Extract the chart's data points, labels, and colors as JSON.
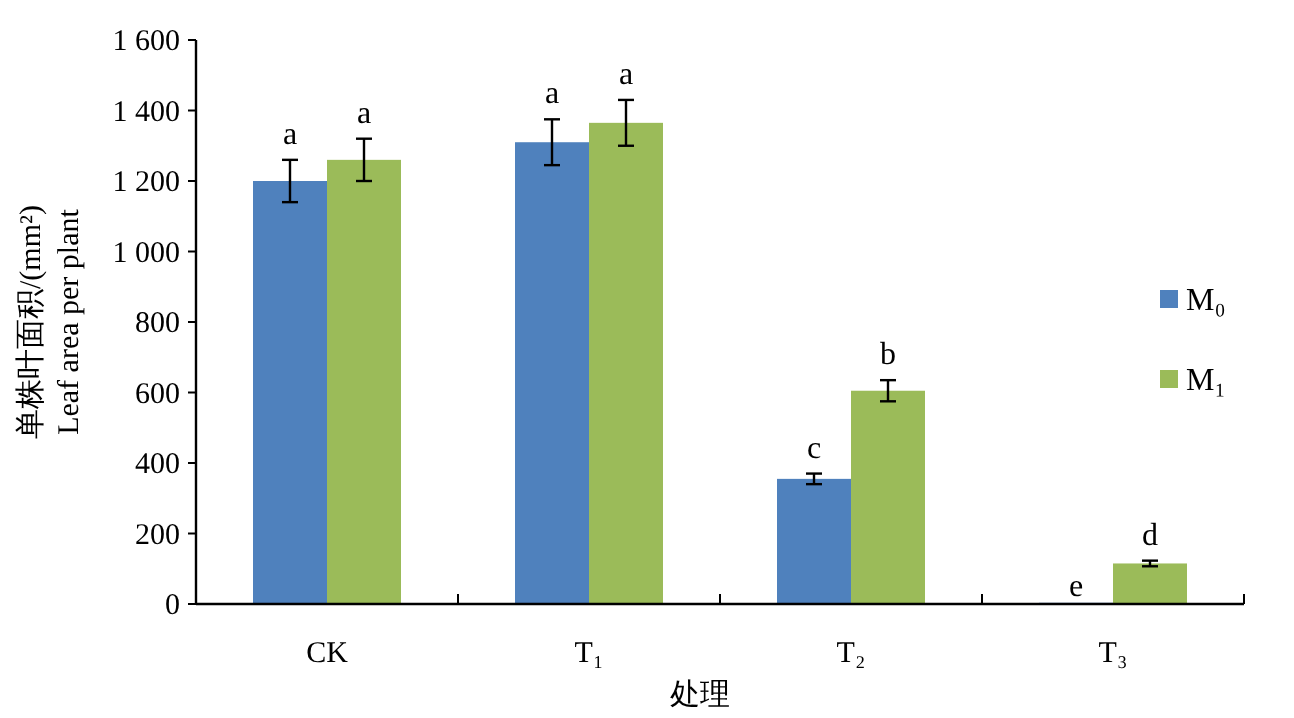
{
  "chart_data": {
    "type": "bar",
    "xlabel": "处理",
    "ylabel": "单株叶面积/(mm²)\nLeaf area per plant",
    "categories": [
      "CK",
      "T₁",
      "T₂",
      "T₃"
    ],
    "series": [
      {
        "name": "M₀",
        "color": "#4f81bd",
        "values": [
          1200,
          1310,
          355,
          0
        ],
        "errors": [
          60,
          65,
          15,
          null
        ],
        "value_labels": [
          "a",
          "a",
          "c",
          "e"
        ]
      },
      {
        "name": "M₁",
        "color": "#9bbb59",
        "values": [
          1260,
          1365,
          605,
          115
        ],
        "errors": [
          60,
          65,
          30,
          8
        ],
        "value_labels": [
          "a",
          "a",
          "b",
          "d"
        ]
      }
    ],
    "ylim": [
      0,
      1600
    ],
    "yticks": [
      0,
      200,
      400,
      600,
      800,
      {
        "value": 1000,
        "label": "1 000"
      },
      {
        "value": 1200,
        "label": "1 200"
      },
      {
        "value": 1400,
        "label": "1 400"
      },
      {
        "value": 1600,
        "label": "1 600"
      }
    ],
    "grid": false,
    "legend": "right"
  }
}
